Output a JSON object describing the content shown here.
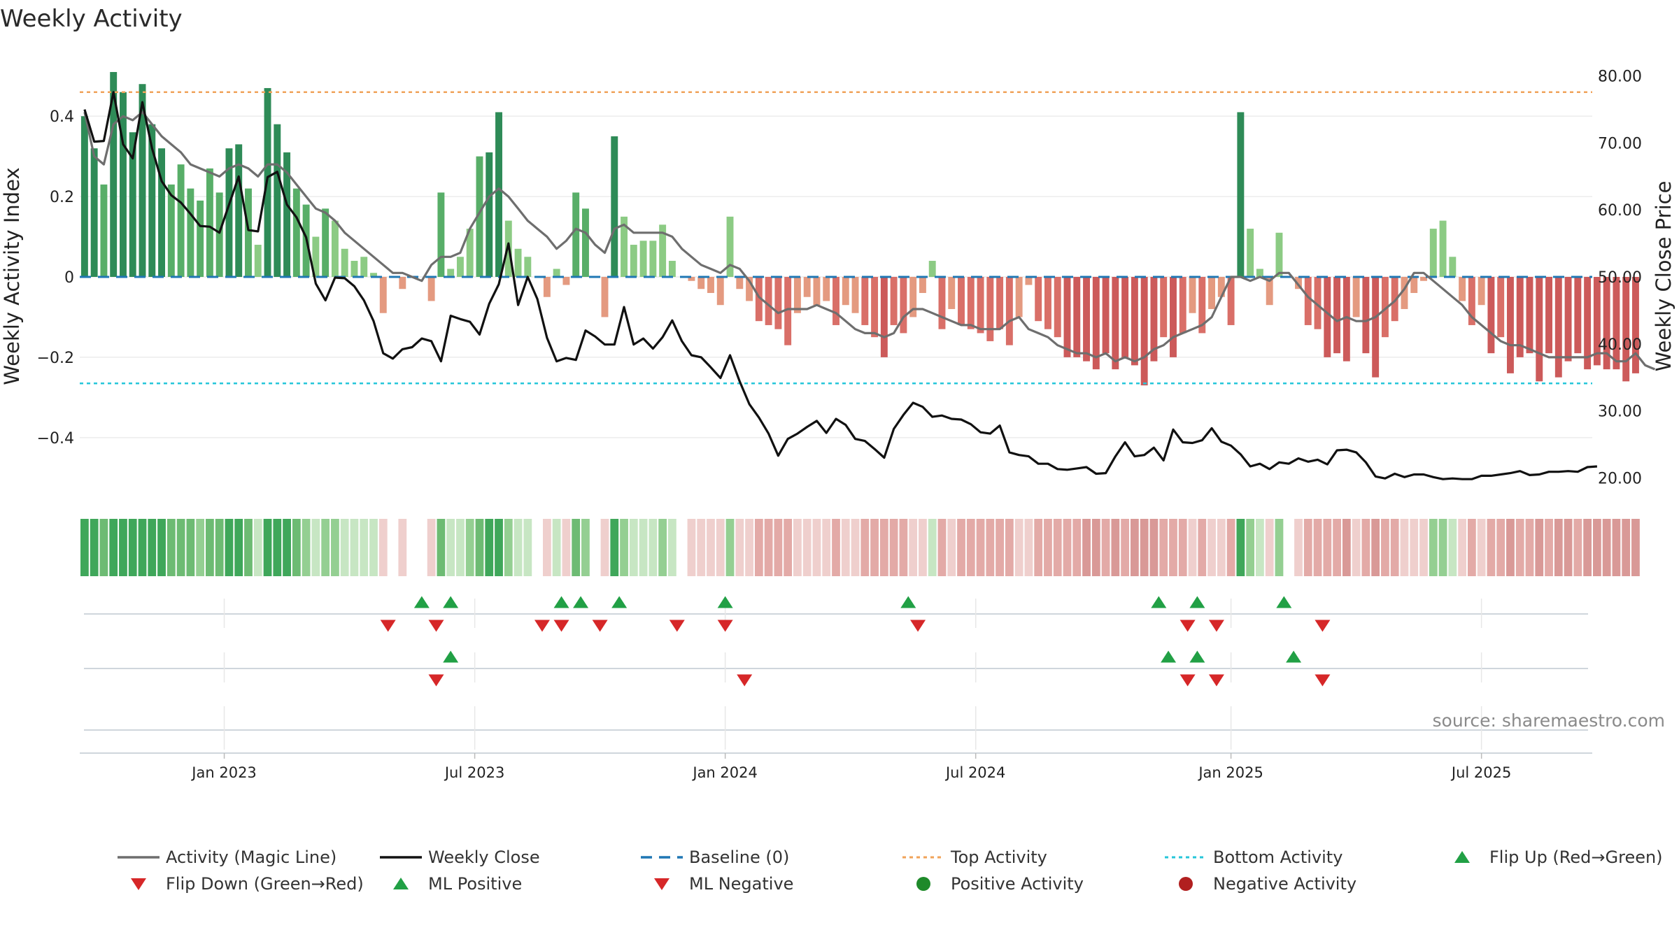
{
  "chart_data": {
    "type": "bar",
    "title": "Weekly Activity",
    "source": "source: sharemaestro.com",
    "left_axis": {
      "label": "Weekly Activity Index",
      "ylim": [
        -0.55,
        0.55
      ],
      "ticks": [
        {
          "v": 0.4,
          "t": "0.4"
        },
        {
          "v": 0.2,
          "t": "0.2"
        },
        {
          "v": 0,
          "t": "0"
        },
        {
          "v": -0.2,
          "t": "−0.2"
        },
        {
          "v": -0.4,
          "t": "−0.4"
        }
      ]
    },
    "right_axis": {
      "label": "Weekly Close Price",
      "ylim": [
        17.0,
        83.0
      ],
      "ticks": [
        {
          "v": 80,
          "t": "80.00"
        },
        {
          "v": 70,
          "t": "70.00"
        },
        {
          "v": 60,
          "t": "60.00"
        },
        {
          "v": 50,
          "t": "50.00"
        },
        {
          "v": 40,
          "t": "40.00"
        },
        {
          "v": 30,
          "t": "30.00"
        },
        {
          "v": 20,
          "t": "20.00"
        }
      ]
    },
    "x_range": [
      0,
      157
    ],
    "x_ticks": [
      {
        "w": 15,
        "t": "Jan 2023"
      },
      {
        "w": 41,
        "t": "Jul 2023"
      },
      {
        "w": 67,
        "t": "Jan 2024"
      },
      {
        "w": 93,
        "t": "Jul 2024"
      },
      {
        "w": 119.5,
        "t": "Jan 2025"
      },
      {
        "w": 145.5,
        "t": "Jul 2025"
      }
    ],
    "top_activity": 0.46,
    "bottom_activity": -0.265,
    "baseline": 0,
    "activity": [
      0.4,
      0.32,
      0.23,
      0.51,
      0.46,
      0.36,
      0.48,
      0.38,
      0.32,
      0.23,
      0.28,
      0.22,
      0.19,
      0.27,
      0.21,
      0.32,
      0.33,
      0.22,
      0.08,
      0.47,
      0.38,
      0.31,
      0.22,
      0.18,
      0.1,
      0.17,
      0.14,
      0.07,
      0.04,
      0.05,
      0.01,
      -0.09,
      0.0,
      -0.03,
      0.0,
      0.0,
      -0.06,
      0.21,
      0.02,
      0.05,
      0.12,
      0.3,
      0.31,
      0.41,
      0.14,
      0.07,
      0.05,
      0.0,
      -0.05,
      0.02,
      -0.02,
      0.21,
      0.17,
      0.0,
      -0.1,
      0.35,
      0.15,
      0.08,
      0.09,
      0.09,
      0.13,
      0.04,
      0.0,
      -0.01,
      -0.03,
      -0.04,
      -0.07,
      0.15,
      -0.03,
      -0.06,
      -0.11,
      -0.12,
      -0.13,
      -0.17,
      -0.09,
      -0.05,
      -0.07,
      -0.06,
      -0.12,
      -0.07,
      -0.09,
      -0.12,
      -0.15,
      -0.2,
      -0.12,
      -0.14,
      -0.1,
      -0.04,
      0.04,
      -0.13,
      -0.08,
      -0.12,
      -0.13,
      -0.14,
      -0.16,
      -0.13,
      -0.17,
      -0.1,
      -0.02,
      -0.11,
      -0.13,
      -0.15,
      -0.2,
      -0.2,
      -0.21,
      -0.23,
      -0.19,
      -0.23,
      -0.2,
      -0.22,
      -0.27,
      -0.21,
      -0.15,
      -0.2,
      -0.14,
      -0.09,
      -0.14,
      -0.08,
      -0.05,
      -0.12,
      0.41,
      0.12,
      0.02,
      -0.07,
      0.11,
      0.0,
      -0.03,
      -0.12,
      -0.13,
      -0.2,
      -0.19,
      -0.21,
      -0.1,
      -0.19,
      -0.25,
      -0.15,
      -0.11,
      -0.08,
      -0.04,
      -0.01,
      0.12,
      0.14,
      0.05,
      -0.06,
      -0.12,
      -0.07,
      -0.19,
      -0.15,
      -0.24,
      -0.2,
      -0.19,
      -0.26,
      -0.19,
      -0.25,
      -0.21,
      -0.19,
      -0.23,
      -0.22,
      -0.23,
      -0.23,
      -0.26,
      -0.24
    ],
    "magic_line": [
      0.41,
      0.3,
      0.28,
      0.38,
      0.4,
      0.39,
      0.41,
      0.38,
      0.35,
      0.33,
      0.31,
      0.28,
      0.27,
      0.26,
      0.25,
      0.27,
      0.28,
      0.27,
      0.25,
      0.28,
      0.28,
      0.26,
      0.23,
      0.2,
      0.17,
      0.16,
      0.14,
      0.11,
      0.09,
      0.07,
      0.05,
      0.03,
      0.01,
      0.01,
      0.0,
      -0.01,
      0.03,
      0.05,
      0.05,
      0.06,
      0.12,
      0.16,
      0.2,
      0.22,
      0.2,
      0.17,
      0.14,
      0.12,
      0.1,
      0.07,
      0.09,
      0.12,
      0.11,
      0.08,
      0.06,
      0.12,
      0.13,
      0.11,
      0.11,
      0.11,
      0.11,
      0.1,
      0.07,
      0.05,
      0.03,
      0.02,
      0.01,
      0.03,
      0.02,
      -0.01,
      -0.05,
      -0.07,
      -0.09,
      -0.08,
      -0.08,
      -0.08,
      -0.07,
      -0.08,
      -0.09,
      -0.11,
      -0.13,
      -0.14,
      -0.14,
      -0.15,
      -0.14,
      -0.1,
      -0.08,
      -0.08,
      -0.09,
      -0.1,
      -0.11,
      -0.12,
      -0.12,
      -0.13,
      -0.13,
      -0.13,
      -0.11,
      -0.1,
      -0.13,
      -0.14,
      -0.15,
      -0.17,
      -0.18,
      -0.19,
      -0.19,
      -0.2,
      -0.19,
      -0.21,
      -0.2,
      -0.21,
      -0.2,
      -0.18,
      -0.17,
      -0.15,
      -0.14,
      -0.13,
      -0.12,
      -0.1,
      -0.05,
      -0.0,
      -0.0,
      -0.01,
      0.0,
      -0.01,
      0.01,
      0.01,
      -0.02,
      -0.05,
      -0.07,
      -0.09,
      -0.11,
      -0.1,
      -0.11,
      -0.11,
      -0.1,
      -0.08,
      -0.06,
      -0.03,
      0.01,
      0.01,
      -0.01,
      -0.03,
      -0.05,
      -0.07,
      -0.1,
      -0.12,
      -0.14,
      -0.16,
      -0.17,
      -0.17,
      -0.18,
      -0.19,
      -0.2,
      -0.2,
      -0.2,
      -0.2,
      -0.2,
      -0.19,
      -0.19,
      -0.21,
      -0.21,
      -0.19,
      -0.22,
      -0.23
    ],
    "weekly_close": [
      75.0,
      70.2,
      70.3,
      77.6,
      69.8,
      67.7,
      76.1,
      69.2,
      64.3,
      62.2,
      61.1,
      59.4,
      57.6,
      57.5,
      56.6,
      60.8,
      65.0,
      57.0,
      56.8,
      64.9,
      65.7,
      60.8,
      58.9,
      55.9,
      49.0,
      46.5,
      49.9,
      49.8,
      48.6,
      46.5,
      43.4,
      38.6,
      37.8,
      39.2,
      39.5,
      40.8,
      40.4,
      37.4,
      44.2,
      43.7,
      43.3,
      41.4,
      46.0,
      48.9,
      55.0,
      45.8,
      50.0,
      46.7,
      40.9,
      37.4,
      37.9,
      37.6,
      42.0,
      41.1,
      39.9,
      39.9,
      45.5,
      39.9,
      40.8,
      39.3,
      41.0,
      43.5,
      40.4,
      38.3,
      38.0,
      36.5,
      34.9,
      38.3,
      34.4,
      31.0,
      29.0,
      26.6,
      23.3,
      25.8,
      26.6,
      27.6,
      28.5,
      26.7,
      28.8,
      27.9,
      25.8,
      25.5,
      24.3,
      23.0,
      27.3,
      29.4,
      31.2,
      30.6,
      29.1,
      29.3,
      28.8,
      28.7,
      28.0,
      26.8,
      26.6,
      27.8,
      23.8,
      23.4,
      23.2,
      22.1,
      22.1,
      21.3,
      21.2,
      21.4,
      21.6,
      20.6,
      20.7,
      23.2,
      25.3,
      23.2,
      23.4,
      24.5,
      22.6,
      27.2,
      25.3,
      25.2,
      25.6,
      27.4,
      25.4,
      24.8,
      23.5,
      21.7,
      22.1,
      21.3,
      22.3,
      22.1,
      22.9,
      22.4,
      22.7,
      22.0,
      24.1,
      24.2,
      23.8,
      22.3,
      20.2,
      19.9,
      20.6,
      20.1,
      20.5,
      20.5,
      20.1,
      19.8,
      19.9,
      19.8,
      19.8,
      20.3,
      20.3,
      20.5,
      20.7,
      21.0,
      20.4,
      20.5,
      20.9,
      20.9,
      21.0,
      20.9,
      21.6,
      21.7
    ],
    "ml_positive_weeks": [
      35.5,
      38.5,
      50,
      52,
      56,
      67,
      86,
      112,
      116,
      125
    ],
    "ml_negative_weeks": [
      32,
      37,
      48,
      50,
      54,
      62,
      67,
      87,
      115,
      118,
      129
    ],
    "flip_up_weeks": [
      38.5,
      113,
      116,
      126
    ],
    "flip_down_weeks": [
      37,
      69,
      115,
      118,
      129
    ],
    "legend": [
      {
        "label": "Activity (Magic Line)",
        "symbol": "line-gray"
      },
      {
        "label": "Weekly Close",
        "symbol": "line-black"
      },
      {
        "label": "Baseline (0)",
        "symbol": "dash-blue"
      },
      {
        "label": "Top Activity",
        "symbol": "dot-orange"
      },
      {
        "label": "Bottom Activity",
        "symbol": "dot-cyan"
      },
      {
        "label": "Flip Up (Red→Green)",
        "symbol": "tri-up"
      },
      {
        "label": "Flip Down (Green→Red)",
        "symbol": "tri-down"
      },
      {
        "label": "ML Positive",
        "symbol": "tri-up"
      },
      {
        "label": "ML Negative",
        "symbol": "tri-down"
      },
      {
        "label": "Positive Activity",
        "symbol": "circle-green"
      },
      {
        "label": "Negative Activity",
        "symbol": "circle-red"
      }
    ]
  },
  "colors": {
    "magic_line": "#6e6e6e",
    "close_line": "#111111",
    "baseline": "#1f77b4",
    "top_activity": "#f0a35a",
    "bottom_activity": "#26c6da",
    "up_marker": "#21a045",
    "down_marker": "#d62728",
    "positive_circle": "#1e8a2a",
    "negative_circle": "#b11f1f"
  }
}
